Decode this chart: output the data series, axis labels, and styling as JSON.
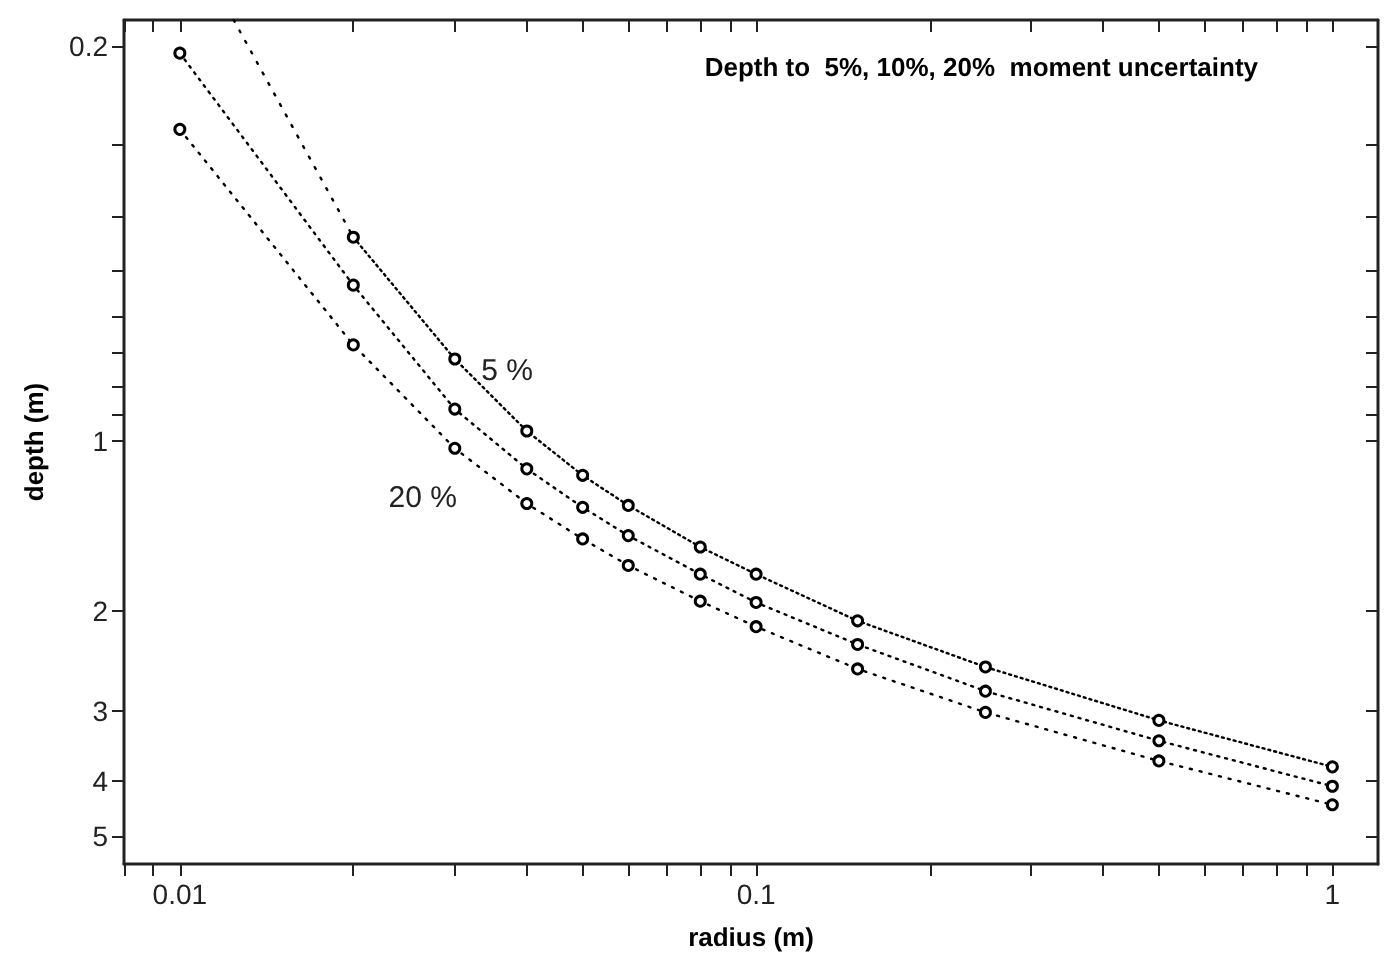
{
  "chart_data": {
    "type": "line",
    "title": "Depth to  5%, 10%, 20%  moment uncertainty",
    "xlabel": "radius (m)",
    "ylabel": "depth (m)",
    "log": "xy",
    "grid": false,
    "legend": false,
    "marker": "circle",
    "line_style": "dotted",
    "xlim": [
      0.008,
      1.2
    ],
    "ylim": [
      5.6,
      0.18
    ],
    "xticks": [
      {
        "value": 0.008,
        "label": null
      },
      {
        "value": 0.009,
        "label": null
      },
      {
        "value": 0.01,
        "label": "0.01"
      },
      {
        "value": 0.02,
        "label": null
      },
      {
        "value": 0.03,
        "label": null
      },
      {
        "value": 0.04,
        "label": null
      },
      {
        "value": 0.05,
        "label": null
      },
      {
        "value": 0.06,
        "label": null
      },
      {
        "value": 0.07,
        "label": null
      },
      {
        "value": 0.08,
        "label": null
      },
      {
        "value": 0.09,
        "label": null
      },
      {
        "value": 0.1,
        "label": "0.1"
      },
      {
        "value": 0.2,
        "label": null
      },
      {
        "value": 0.3,
        "label": null
      },
      {
        "value": 0.4,
        "label": null
      },
      {
        "value": 0.5,
        "label": null
      },
      {
        "value": 0.6,
        "label": null
      },
      {
        "value": 0.7,
        "label": null
      },
      {
        "value": 0.8,
        "label": null
      },
      {
        "value": 0.9,
        "label": null
      },
      1
    ],
    "yticks": [
      {
        "value": 0.2,
        "label": "0.2"
      },
      {
        "value": 0.3,
        "label": null
      },
      {
        "value": 0.4,
        "label": null
      },
      {
        "value": 0.5,
        "label": null
      },
      {
        "value": 0.6,
        "label": null
      },
      {
        "value": 0.7,
        "label": null
      },
      {
        "value": 0.8,
        "label": null
      },
      {
        "value": 0.9,
        "label": null
      },
      1,
      2,
      3,
      4,
      5
    ],
    "x": [
      0.01,
      0.02,
      0.03,
      0.04,
      0.05,
      0.06,
      0.08,
      0.1,
      0.15,
      0.25,
      0.5,
      1
    ],
    "series": [
      {
        "name": "5 %",
        "color": "#000000",
        "values": [
          null,
          0.436,
          0.716,
          0.96,
          1.15,
          1.3,
          1.54,
          1.72,
          2.08,
          2.51,
          3.12,
          3.77
        ]
      },
      {
        "color": "#000000",
        "values": [
          0.206,
          0.53,
          0.878,
          1.12,
          1.31,
          1.47,
          1.72,
          1.93,
          2.29,
          2.77,
          3.39,
          4.08
        ]
      },
      {
        "name": "20 %",
        "color": "#000000",
        "values": [
          0.281,
          0.676,
          1.03,
          1.29,
          1.49,
          1.66,
          1.92,
          2.13,
          2.53,
          3.02,
          3.68,
          4.4
        ]
      },
      {
        "type": "line",
        "marker": "none",
        "color": "#000000",
        "x": [
          0.0124,
          0.02
        ],
        "values": [
          0.18,
          0.436
        ]
      }
    ]
  }
}
